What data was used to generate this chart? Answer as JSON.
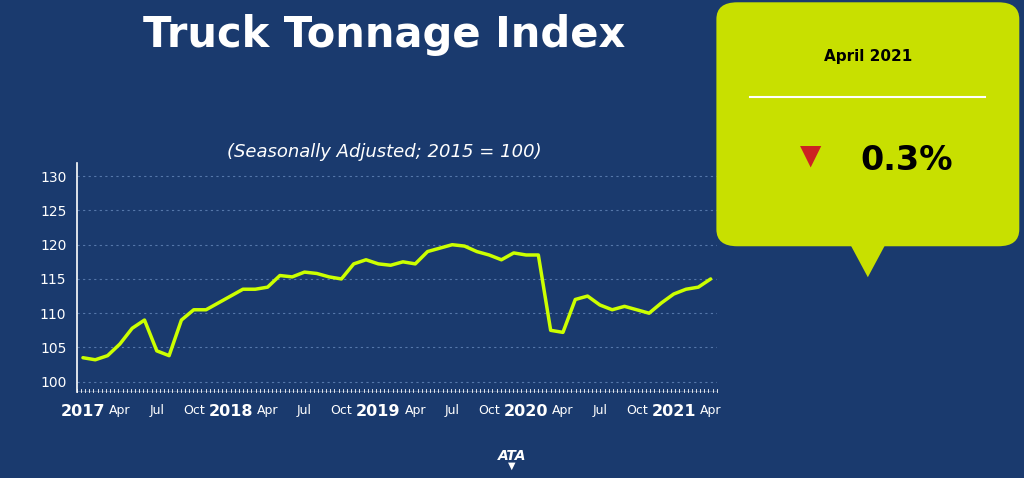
{
  "title": "Truck Tonnage Index",
  "subtitle": "(Seasonally Adjusted; 2015 = 100)",
  "bg_color": "#1a3a6e",
  "line_color": "#ccff00",
  "line_width": 2.5,
  "ylim": [
    98.5,
    132
  ],
  "yticks": [
    100,
    105,
    110,
    115,
    120,
    125,
    130
  ],
  "ylabel_color": "#ffffff",
  "grid_color": "#5577aa",
  "callout_bg": "#c8e000",
  "callout_label": "April 2021",
  "callout_value": "0.3%",
  "callout_arrow_color": "#cc2222",
  "x_labels": [
    "2017",
    "Apr",
    "Jul",
    "Oct",
    "2018",
    "Apr",
    "Jul",
    "Oct",
    "2019",
    "Apr",
    "Jul",
    "Oct",
    "2020",
    "Apr",
    "Jul",
    "Oct",
    "2021",
    "Apr"
  ],
  "x_label_bold": [
    true,
    false,
    false,
    false,
    true,
    false,
    false,
    false,
    true,
    false,
    false,
    false,
    true,
    false,
    false,
    false,
    true,
    false
  ],
  "data_y": [
    103.5,
    103.2,
    103.8,
    105.5,
    107.8,
    109.0,
    104.5,
    103.8,
    109.0,
    110.5,
    110.5,
    111.5,
    112.5,
    113.5,
    113.5,
    113.8,
    115.5,
    115.3,
    116.0,
    115.8,
    115.3,
    115.0,
    117.2,
    117.8,
    117.2,
    117.0,
    117.5,
    117.2,
    119.0,
    119.5,
    120.0,
    119.8,
    119.0,
    118.5,
    117.8,
    118.8,
    118.5,
    118.5,
    107.5,
    107.2,
    112.0,
    112.5,
    111.2,
    110.5,
    111.0,
    110.5,
    110.0,
    111.5,
    112.8,
    113.5,
    113.8,
    115.0
  ],
  "n_points": 52
}
